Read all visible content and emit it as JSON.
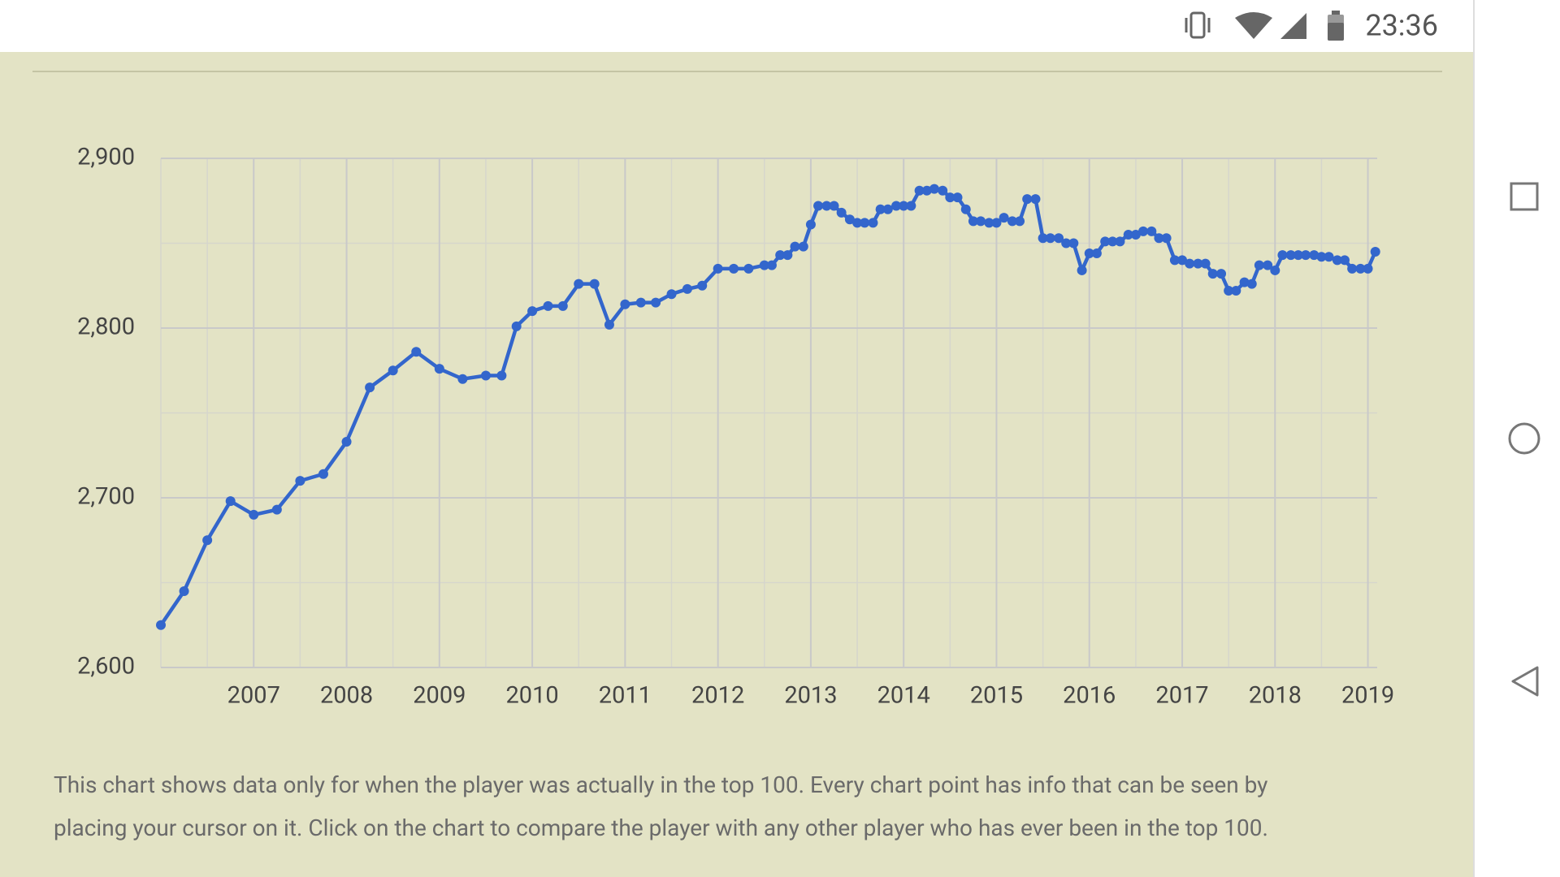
{
  "status_bar": {
    "time": "23:36"
  },
  "chart_data": {
    "type": "line",
    "color": "#3366cc",
    "grid": true,
    "x": [
      2006.0,
      2006.25,
      2006.5,
      2006.75,
      2007.0,
      2007.25,
      2007.5,
      2007.75,
      2008.0,
      2008.25,
      2008.5,
      2008.75,
      2009.0,
      2009.25,
      2009.5,
      2009.67,
      2009.83,
      2010.0,
      2010.17,
      2010.33,
      2010.5,
      2010.67,
      2010.83,
      2011.0,
      2011.17,
      2011.33,
      2011.5,
      2011.67,
      2011.83,
      2012.0,
      2012.17,
      2012.33,
      2012.5,
      2012.58,
      2012.67,
      2012.75,
      2012.83,
      2012.92,
      2013.0,
      2013.08,
      2013.17,
      2013.25,
      2013.33,
      2013.42,
      2013.5,
      2013.58,
      2013.67,
      2013.75,
      2013.83,
      2013.92,
      2014.0,
      2014.08,
      2014.17,
      2014.25,
      2014.33,
      2014.42,
      2014.5,
      2014.58,
      2014.67,
      2014.75,
      2014.83,
      2014.92,
      2015.0,
      2015.08,
      2015.17,
      2015.25,
      2015.33,
      2015.42,
      2015.5,
      2015.58,
      2015.67,
      2015.75,
      2015.83,
      2015.92,
      2016.0,
      2016.08,
      2016.17,
      2016.25,
      2016.33,
      2016.42,
      2016.5,
      2016.58,
      2016.67,
      2016.75,
      2016.83,
      2016.92,
      2017.0,
      2017.08,
      2017.17,
      2017.25,
      2017.33,
      2017.42,
      2017.5,
      2017.58,
      2017.67,
      2017.75,
      2017.83,
      2017.92,
      2018.0,
      2018.08,
      2018.17,
      2018.25,
      2018.33,
      2018.42,
      2018.5,
      2018.58,
      2018.67,
      2018.75,
      2018.83,
      2018.92,
      2019.0,
      2019.08
    ],
    "values": [
      2625,
      2645,
      2675,
      2698,
      2690,
      2693,
      2710,
      2714,
      2733,
      2765,
      2775,
      2786,
      2776,
      2770,
      2772,
      2772,
      2801,
      2810,
      2813,
      2813,
      2826,
      2826,
      2802,
      2814,
      2815,
      2815,
      2820,
      2823,
      2825,
      2835,
      2835,
      2835,
      2837,
      2837,
      2843,
      2843,
      2848,
      2848,
      2861,
      2872,
      2872,
      2872,
      2868,
      2864,
      2862,
      2862,
      2862,
      2870,
      2870,
      2872,
      2872,
      2872,
      2881,
      2881,
      2882,
      2881,
      2877,
      2877,
      2870,
      2863,
      2863,
      2862,
      2862,
      2865,
      2863,
      2863,
      2876,
      2876,
      2853,
      2853,
      2853,
      2850,
      2850,
      2834,
      2844,
      2844,
      2851,
      2851,
      2851,
      2855,
      2855,
      2857,
      2857,
      2853,
      2853,
      2840,
      2840,
      2838,
      2838,
      2838,
      2832,
      2832,
      2822,
      2822,
      2827,
      2826,
      2837,
      2837,
      2834,
      2843,
      2843,
      2843,
      2843,
      2843,
      2842,
      2842,
      2840,
      2840,
      2835,
      2835,
      2835,
      2845
    ],
    "xlim": [
      2006.0,
      2019.1
    ],
    "xticks": [
      2007,
      2008,
      2009,
      2010,
      2011,
      2012,
      2013,
      2014,
      2015,
      2016,
      2017,
      2018,
      2019
    ],
    "xminorticks": [
      2006.0,
      2006.5,
      2007.5,
      2008.5,
      2009.5,
      2010.5,
      2011.5,
      2012.5,
      2013.5,
      2014.5,
      2015.5,
      2016.5,
      2017.5,
      2018.5
    ],
    "ylim": [
      2600,
      2900
    ],
    "yticks": [
      {
        "value": 2600,
        "label": "2,600"
      },
      {
        "value": 2700,
        "label": "2,700"
      },
      {
        "value": 2800,
        "label": "2,800"
      },
      {
        "value": 2900,
        "label": "2,900"
      }
    ],
    "yminorticks": [
      2650,
      2750,
      2850
    ]
  },
  "caption": [
    "This chart shows data only for when the player was actually in the top 100. Every chart point has info that can be seen by",
    "placing your cursor on it. Click on the chart to compare the player with any other player who has ever been in the top 100."
  ]
}
